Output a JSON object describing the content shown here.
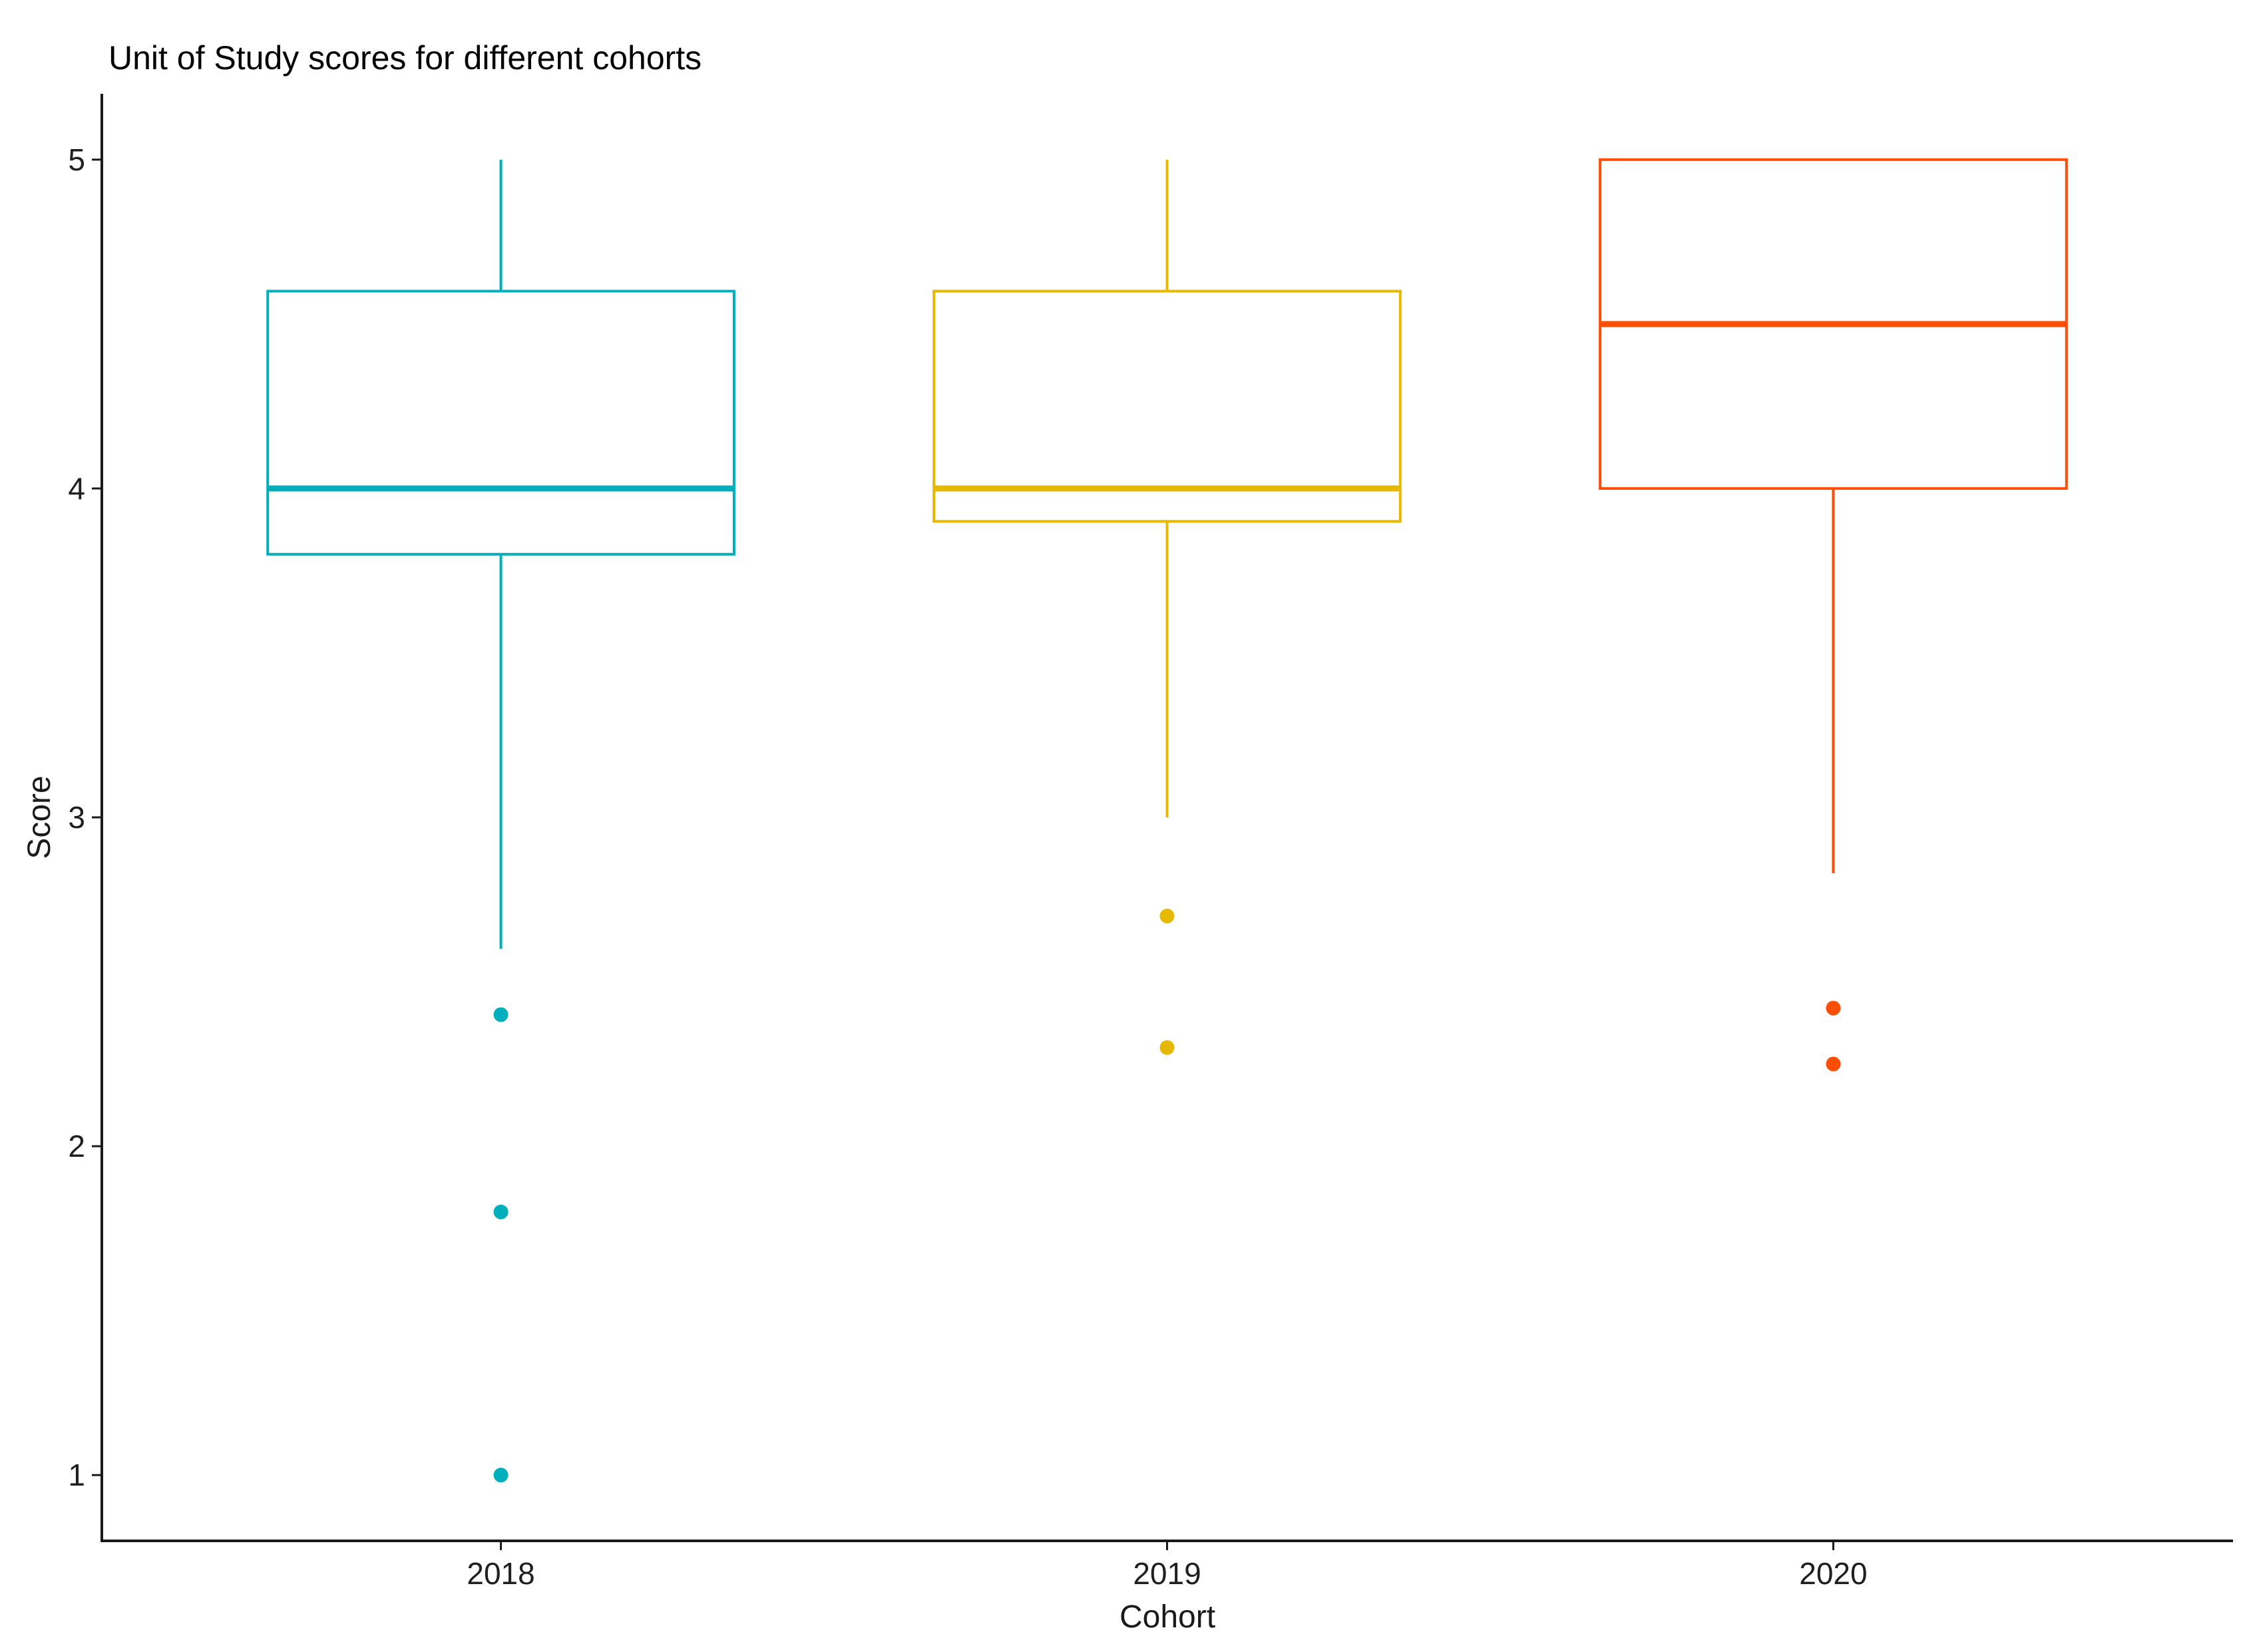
{
  "chart_data": {
    "type": "boxplot",
    "title": "Unit of Study scores for different cohorts",
    "xlabel": "Cohort",
    "ylabel": "Score",
    "categories": [
      "2018",
      "2019",
      "2020"
    ],
    "y_ticks": [
      1,
      2,
      3,
      4,
      5
    ],
    "ylim": [
      0.8,
      5.2
    ],
    "grid": "off",
    "legend": "none",
    "series": [
      {
        "cohort": "2018",
        "color": "#00AFBB",
        "whisker_low": 2.6,
        "q1": 3.8,
        "median": 4.0,
        "q3": 4.6,
        "whisker_high": 5.0,
        "outliers": [
          2.4,
          1.8,
          1.0
        ]
      },
      {
        "cohort": "2019",
        "color": "#E7B800",
        "whisker_low": 3.0,
        "q1": 3.9,
        "median": 4.0,
        "q3": 4.6,
        "whisker_high": 5.0,
        "outliers": [
          2.7,
          2.3
        ]
      },
      {
        "cohort": "2020",
        "color": "#FC4E07",
        "whisker_low": 2.83,
        "q1": 4.0,
        "median": 4.5,
        "q3": 5.0,
        "whisker_high": 5.0,
        "outliers": [
          2.42,
          2.25
        ]
      }
    ],
    "styles": {
      "background": "#ffffff",
      "axis_line_color": "#1a1a1a",
      "box_fill": "#ffffff"
    }
  }
}
